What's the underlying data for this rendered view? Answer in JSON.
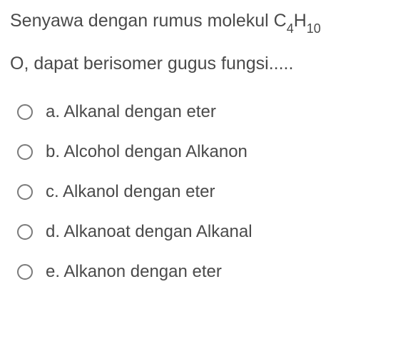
{
  "question": {
    "line1_pre": "Senyawa dengan rumus molekul C",
    "sub1": "4",
    "line1_mid": "H",
    "sub2": "10",
    "line2": "O, dapat berisomer gugus fungsi....."
  },
  "options": [
    {
      "letter": "a.",
      "text": "Alkanal dengan eter"
    },
    {
      "letter": "b.",
      "text": "Alcohol dengan Alkanon"
    },
    {
      "letter": "c.",
      "text": "Alkanol dengan eter"
    },
    {
      "letter": "d.",
      "text": "Alkanoat dengan Alkanal"
    },
    {
      "letter": "e.",
      "text": "Alkanon dengan eter"
    }
  ],
  "colors": {
    "text": "#4a4a4a",
    "radio_border": "#7a7a7a",
    "background": "#ffffff"
  },
  "typography": {
    "question_fontsize": 25,
    "option_fontsize": 24,
    "sub_fontsize": 18
  }
}
